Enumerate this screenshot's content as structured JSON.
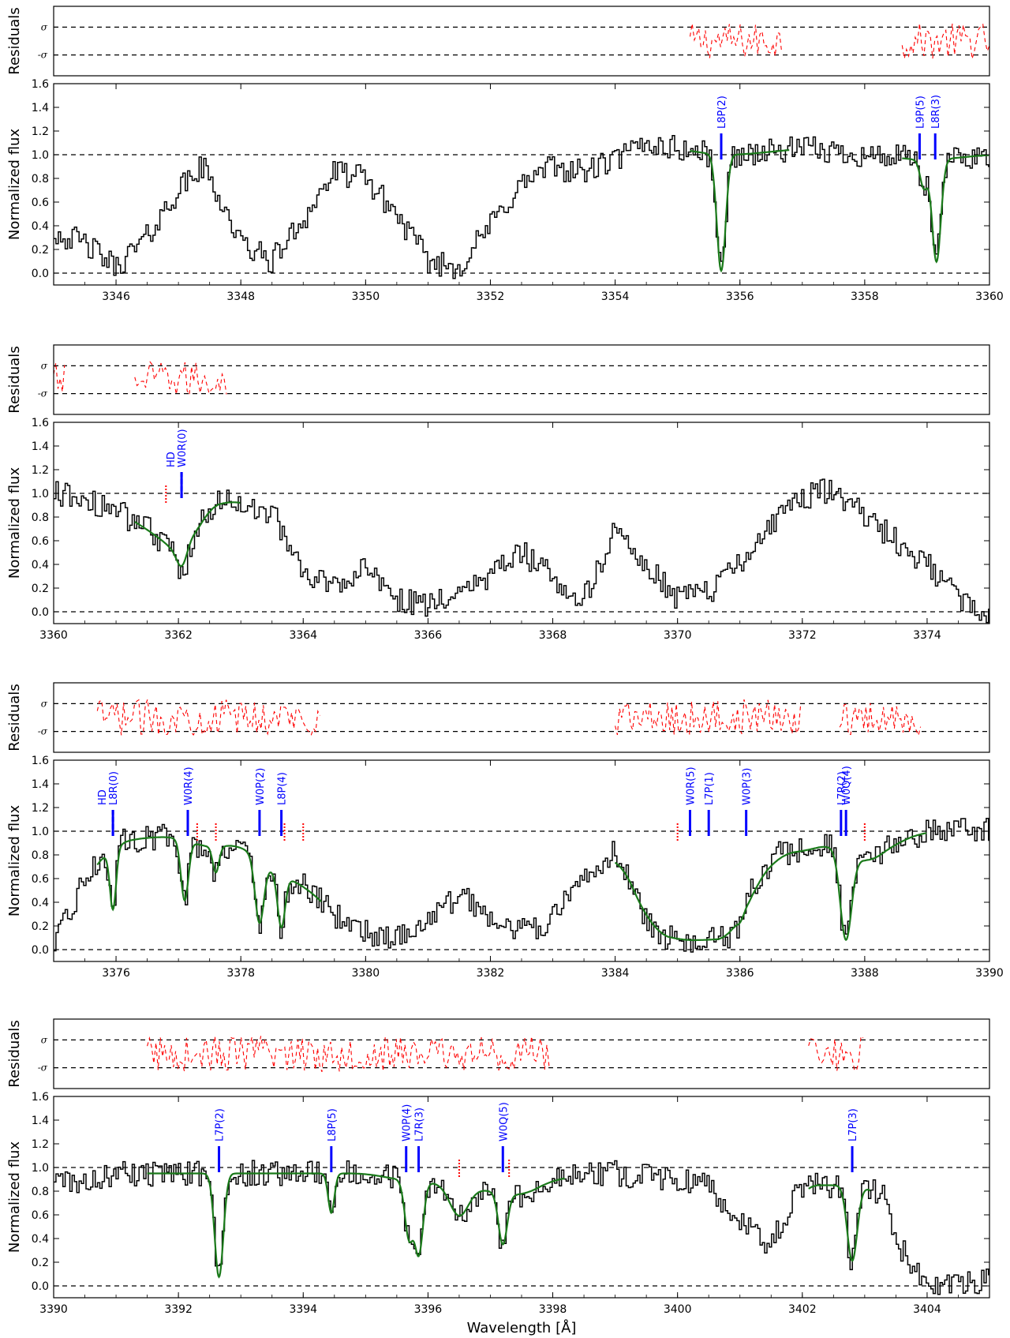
{
  "chart_data": {
    "type": "line",
    "xlabel": "Wavelength [Å]",
    "ylabel_flux": "Normalized flux",
    "ylabel_residuals": "Residuals",
    "residual_tick_labels": [
      "σ",
      "-σ"
    ],
    "ylim": [
      -0.1,
      1.6
    ],
    "y_ticks": [
      0.0,
      0.2,
      0.4,
      0.6,
      0.8,
      1.0,
      1.2,
      1.4,
      1.6
    ],
    "y_tick_labels": [
      "0.0",
      "0.2",
      "0.4",
      "0.6",
      "0.8",
      "1.0",
      "1.2",
      "1.4",
      "1.6"
    ],
    "reference_lines_y": [
      0.0,
      1.0
    ],
    "colors": {
      "spectrum": "#000000",
      "model": "#1a7a1a",
      "residuals": "#ff0000",
      "h2_marker": "#0000ff",
      "hd_marker": "#0000ff",
      "other_marker": "#ff0000"
    },
    "panels": [
      {
        "xlim": [
          3345,
          3360
        ],
        "x_ticks": [
          3346,
          3348,
          3350,
          3352,
          3354,
          3356,
          3358,
          3360
        ],
        "x_tick_labels": [
          "3346",
          "3348",
          "3350",
          "3352",
          "3354",
          "3356",
          "3358",
          "3360"
        ],
        "spectrum_anchors": [
          [
            3345.0,
            0.35
          ],
          [
            3345.5,
            0.25
          ],
          [
            3346.0,
            0.05
          ],
          [
            3346.5,
            0.3
          ],
          [
            3347.0,
            0.7
          ],
          [
            3347.4,
            0.9
          ],
          [
            3347.7,
            0.6
          ],
          [
            3348.0,
            0.25
          ],
          [
            3348.5,
            0.1
          ],
          [
            3349.0,
            0.45
          ],
          [
            3349.5,
            0.85
          ],
          [
            3350.0,
            0.8
          ],
          [
            3350.5,
            0.5
          ],
          [
            3351.0,
            0.1
          ],
          [
            3351.5,
            0.05
          ],
          [
            3352.0,
            0.4
          ],
          [
            3352.5,
            0.75
          ],
          [
            3353.0,
            0.9
          ],
          [
            3353.5,
            0.85
          ],
          [
            3354.0,
            0.95
          ],
          [
            3354.5,
            1.1
          ],
          [
            3355.0,
            1.05
          ],
          [
            3355.6,
            1.0
          ],
          [
            3356.0,
            1.0
          ],
          [
            3357.0,
            1.05
          ],
          [
            3358.0,
            1.0
          ],
          [
            3359.0,
            0.95
          ],
          [
            3360.0,
            1.0
          ]
        ],
        "absorption_features": [
          {
            "center": 3355.7,
            "depth": 0.98,
            "width": 0.07
          },
          {
            "center": 3358.95,
            "depth": 0.25,
            "width": 0.06
          },
          {
            "center": 3359.15,
            "depth": 0.9,
            "width": 0.07
          }
        ],
        "model_x_ranges": [
          [
            3355.2,
            3356.8
          ],
          [
            3358.6,
            3360.0
          ]
        ],
        "residual_x_ranges": [
          [
            3355.2,
            3356.7
          ],
          [
            3358.6,
            3360.0
          ]
        ],
        "h2_markers": [
          {
            "x": 3355.7,
            "label": "L8P(2)"
          },
          {
            "x": 3358.88,
            "label": "L9P(5)"
          },
          {
            "x": 3359.13,
            "label": "L8R(3)"
          }
        ],
        "hd_markers": [],
        "other_markers": []
      },
      {
        "xlim": [
          3360,
          3375
        ],
        "x_ticks": [
          3360,
          3362,
          3364,
          3366,
          3368,
          3370,
          3372,
          3374
        ],
        "x_tick_labels": [
          "3360",
          "3362",
          "3364",
          "3366",
          "3368",
          "3370",
          "3372",
          "3374"
        ],
        "spectrum_anchors": [
          [
            3360.0,
            1.0
          ],
          [
            3360.5,
            0.95
          ],
          [
            3361.0,
            0.85
          ],
          [
            3361.5,
            0.7
          ],
          [
            3362.1,
            0.45
          ],
          [
            3362.4,
            0.85
          ],
          [
            3362.8,
            0.95
          ],
          [
            3363.5,
            0.85
          ],
          [
            3364.0,
            0.3
          ],
          [
            3364.5,
            0.25
          ],
          [
            3365.0,
            0.35
          ],
          [
            3365.5,
            0.1
          ],
          [
            3366.0,
            0.05
          ],
          [
            3366.5,
            0.2
          ],
          [
            3367.0,
            0.3
          ],
          [
            3367.5,
            0.5
          ],
          [
            3368.0,
            0.3
          ],
          [
            3368.5,
            0.1
          ],
          [
            3369.0,
            0.7
          ],
          [
            3369.5,
            0.4
          ],
          [
            3370.0,
            0.1
          ],
          [
            3370.5,
            0.15
          ],
          [
            3371.0,
            0.4
          ],
          [
            3371.5,
            0.75
          ],
          [
            3372.0,
            0.95
          ],
          [
            3372.5,
            1.05
          ],
          [
            3373.0,
            0.8
          ],
          [
            3373.5,
            0.6
          ],
          [
            3374.0,
            0.4
          ],
          [
            3374.5,
            0.1
          ],
          [
            3375.0,
            0.0
          ]
        ],
        "absorption_features": [
          {
            "center": 3362.05,
            "depth": 0.3,
            "width": 0.08
          }
        ],
        "model_x_ranges": [
          [
            3361.3,
            3363.0
          ]
        ],
        "residual_x_ranges": [
          [
            3360.0,
            3360.2
          ],
          [
            3361.3,
            3362.8
          ]
        ],
        "h2_markers": [
          {
            "x": 3362.05,
            "label": "W0R(0)"
          }
        ],
        "hd_markers": [
          {
            "x": 3362.05,
            "label": "HD"
          }
        ],
        "other_markers": [
          3361.8
        ]
      },
      {
        "xlim": [
          3375,
          3390
        ],
        "x_ticks": [
          3376,
          3378,
          3380,
          3382,
          3384,
          3386,
          3388,
          3390
        ],
        "x_tick_labels": [
          "3376",
          "3378",
          "3380",
          "3382",
          "3384",
          "3386",
          "3388",
          "3390"
        ],
        "spectrum_anchors": [
          [
            3375.0,
            0.0
          ],
          [
            3375.5,
            0.6
          ],
          [
            3376.0,
            0.9
          ],
          [
            3376.5,
            0.95
          ],
          [
            3377.0,
            0.95
          ],
          [
            3377.5,
            0.85
          ],
          [
            3378.0,
            0.9
          ],
          [
            3378.5,
            0.65
          ],
          [
            3379.0,
            0.55
          ],
          [
            3379.5,
            0.3
          ],
          [
            3380.0,
            0.15
          ],
          [
            3380.5,
            0.1
          ],
          [
            3381.0,
            0.25
          ],
          [
            3381.5,
            0.45
          ],
          [
            3382.0,
            0.3
          ],
          [
            3382.5,
            0.15
          ],
          [
            3383.0,
            0.25
          ],
          [
            3383.5,
            0.6
          ],
          [
            3384.0,
            0.85
          ],
          [
            3384.3,
            0.5
          ],
          [
            3384.6,
            0.15
          ],
          [
            3385.0,
            0.08
          ],
          [
            3385.5,
            0.08
          ],
          [
            3385.9,
            0.1
          ],
          [
            3386.2,
            0.5
          ],
          [
            3386.6,
            0.8
          ],
          [
            3387.2,
            0.85
          ],
          [
            3387.5,
            0.9
          ],
          [
            3388.0,
            0.7
          ],
          [
            3388.5,
            0.9
          ],
          [
            3389.0,
            1.0
          ],
          [
            3390.0,
            1.0
          ]
        ],
        "absorption_features": [
          {
            "center": 3375.95,
            "depth": 0.6,
            "width": 0.05
          },
          {
            "center": 3377.1,
            "depth": 0.55,
            "width": 0.06
          },
          {
            "center": 3377.6,
            "depth": 0.25,
            "width": 0.05
          },
          {
            "center": 3378.3,
            "depth": 0.7,
            "width": 0.07
          },
          {
            "center": 3378.65,
            "depth": 0.7,
            "width": 0.06
          },
          {
            "center": 3386.0,
            "depth": 0.15,
            "width": 0.05
          },
          {
            "center": 3387.7,
            "depth": 0.9,
            "width": 0.09
          }
        ],
        "model_x_ranges": [
          [
            3375.7,
            3379.3
          ],
          [
            3384.0,
            3389.0
          ]
        ],
        "residual_x_ranges": [
          [
            3375.7,
            3379.3
          ],
          [
            3384.0,
            3387.0
          ],
          [
            3387.6,
            3388.9
          ]
        ],
        "h2_markers": [
          {
            "x": 3375.95,
            "label": "L8R(0)"
          },
          {
            "x": 3377.15,
            "label": "W0R(4)"
          },
          {
            "x": 3378.3,
            "label": "W0P(2)"
          },
          {
            "x": 3378.65,
            "label": "L8P(4)"
          },
          {
            "x": 3385.2,
            "label": "W0R(5)"
          },
          {
            "x": 3385.5,
            "label": "L7P(1)"
          },
          {
            "x": 3386.1,
            "label": "W0P(3)"
          },
          {
            "x": 3387.62,
            "label": "L7R(2)"
          },
          {
            "x": 3387.7,
            "label": "W0Q(4)"
          }
        ],
        "hd_markers": [
          {
            "x": 3375.95,
            "label": "HD"
          }
        ],
        "other_markers": [
          3377.3,
          3377.6,
          3378.7,
          3379.0,
          3385.0,
          3388.0
        ]
      },
      {
        "xlim": [
          3390,
          3405
        ],
        "x_ticks": [
          3390,
          3392,
          3394,
          3396,
          3398,
          3400,
          3402,
          3404
        ],
        "x_tick_labels": [
          "3390",
          "3392",
          "3394",
          "3396",
          "3398",
          "3400",
          "3402",
          "3404"
        ],
        "spectrum_anchors": [
          [
            3390.0,
            0.9
          ],
          [
            3390.5,
            0.85
          ],
          [
            3391.0,
            0.95
          ],
          [
            3391.5,
            0.95
          ],
          [
            3392.0,
            0.95
          ],
          [
            3393.0,
            0.95
          ],
          [
            3394.0,
            0.95
          ],
          [
            3395.0,
            0.95
          ],
          [
            3395.5,
            0.9
          ],
          [
            3396.5,
            0.85
          ],
          [
            3397.5,
            0.75
          ],
          [
            3398.0,
            0.9
          ],
          [
            3399.0,
            0.95
          ],
          [
            3400.0,
            0.9
          ],
          [
            3400.5,
            0.85
          ],
          [
            3401.0,
            0.55
          ],
          [
            3401.5,
            0.35
          ],
          [
            3402.0,
            0.85
          ],
          [
            3402.5,
            0.85
          ],
          [
            3403.0,
            0.85
          ],
          [
            3403.3,
            0.75
          ],
          [
            3403.6,
            0.3
          ],
          [
            3404.0,
            0.05
          ],
          [
            3404.5,
            0.0
          ],
          [
            3405.0,
            0.05
          ]
        ],
        "absorption_features": [
          {
            "center": 3392.65,
            "depth": 0.92,
            "width": 0.07
          },
          {
            "center": 3394.45,
            "depth": 0.35,
            "width": 0.05
          },
          {
            "center": 3395.7,
            "depth": 0.55,
            "width": 0.07
          },
          {
            "center": 3395.85,
            "depth": 0.7,
            "width": 0.07
          },
          {
            "center": 3396.5,
            "depth": 0.3,
            "width": 0.15
          },
          {
            "center": 3397.2,
            "depth": 0.55,
            "width": 0.07
          },
          {
            "center": 3402.8,
            "depth": 0.75,
            "width": 0.08
          }
        ],
        "model_x_ranges": [
          [
            3391.5,
            3398.2
          ],
          [
            3402.1,
            3403.1
          ]
        ],
        "residual_x_ranges": [
          [
            3391.5,
            3398.0
          ],
          [
            3402.1,
            3403.0
          ]
        ],
        "h2_markers": [
          {
            "x": 3392.65,
            "label": "L7P(2)"
          },
          {
            "x": 3394.45,
            "label": "L8P(5)"
          },
          {
            "x": 3395.65,
            "label": "W0P(4)"
          },
          {
            "x": 3395.85,
            "label": "L7R(3)"
          },
          {
            "x": 3397.2,
            "label": "W0Q(5)"
          },
          {
            "x": 3402.8,
            "label": "L7P(3)"
          }
        ],
        "hd_markers": [],
        "other_markers": [
          3396.5,
          3397.3
        ]
      }
    ]
  }
}
